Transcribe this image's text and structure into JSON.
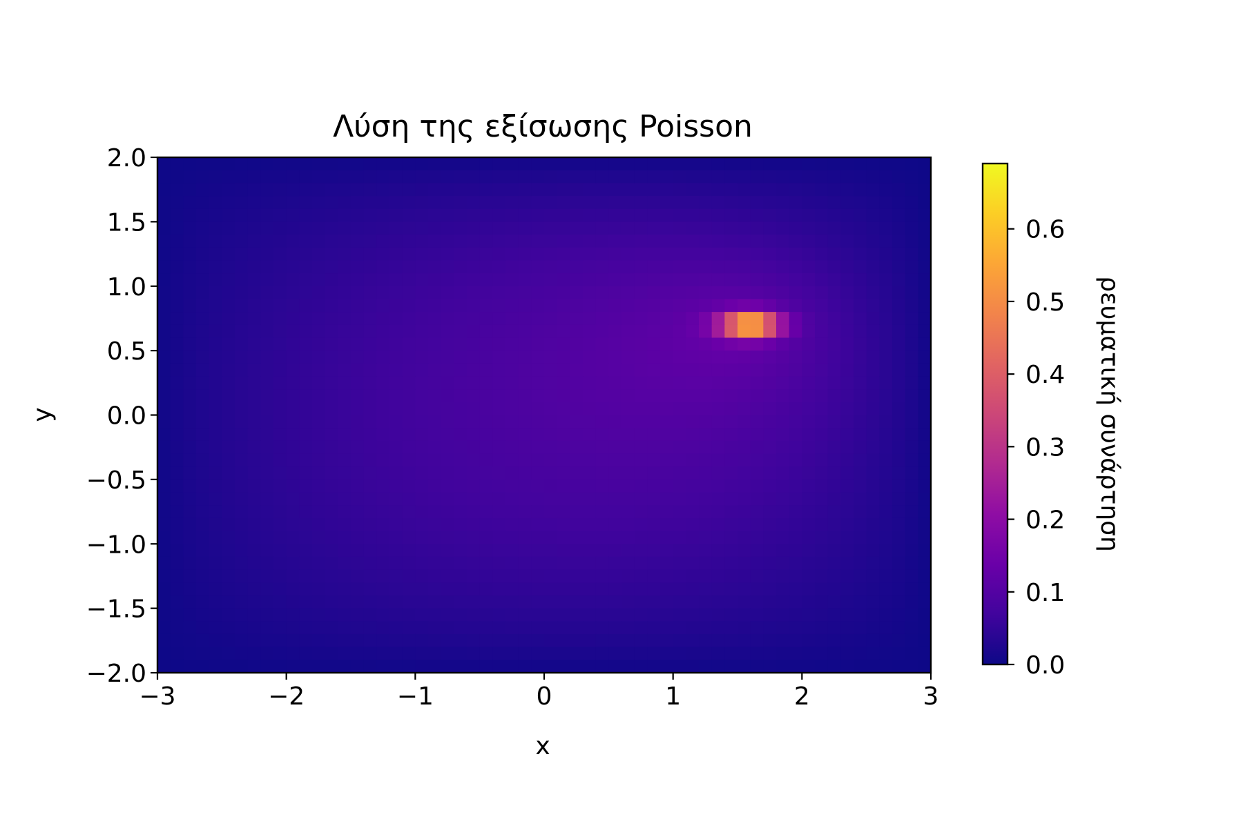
{
  "chart_data": {
    "type": "heatmap",
    "title": "Λύση της εξίσωσης Poisson",
    "xlabel": "x",
    "ylabel": "y",
    "xlim": [
      -3,
      3
    ],
    "ylim": [
      -2,
      2
    ],
    "x_ticks": [
      "−3",
      "−2",
      "−1",
      "0",
      "1",
      "2",
      "3"
    ],
    "y_ticks": [
      "−2.0",
      "−1.5",
      "−1.0",
      "−0.5",
      "0.0",
      "0.5",
      "1.0",
      "1.5",
      "2.0"
    ],
    "grid": false,
    "colormap": "plasma",
    "colorbar": {
      "label": "ρευματική συνάρτηση",
      "range": [
        0.0,
        0.69
      ],
      "ticks": [
        "0.0",
        "0.1",
        "0.2",
        "0.3",
        "0.4",
        "0.5",
        "0.6"
      ]
    },
    "grid_shape": [
      40,
      60
    ],
    "source_peak": {
      "x": 1.6,
      "y": 0.7,
      "value": 0.69
    },
    "boundary_value": 0.0
  }
}
